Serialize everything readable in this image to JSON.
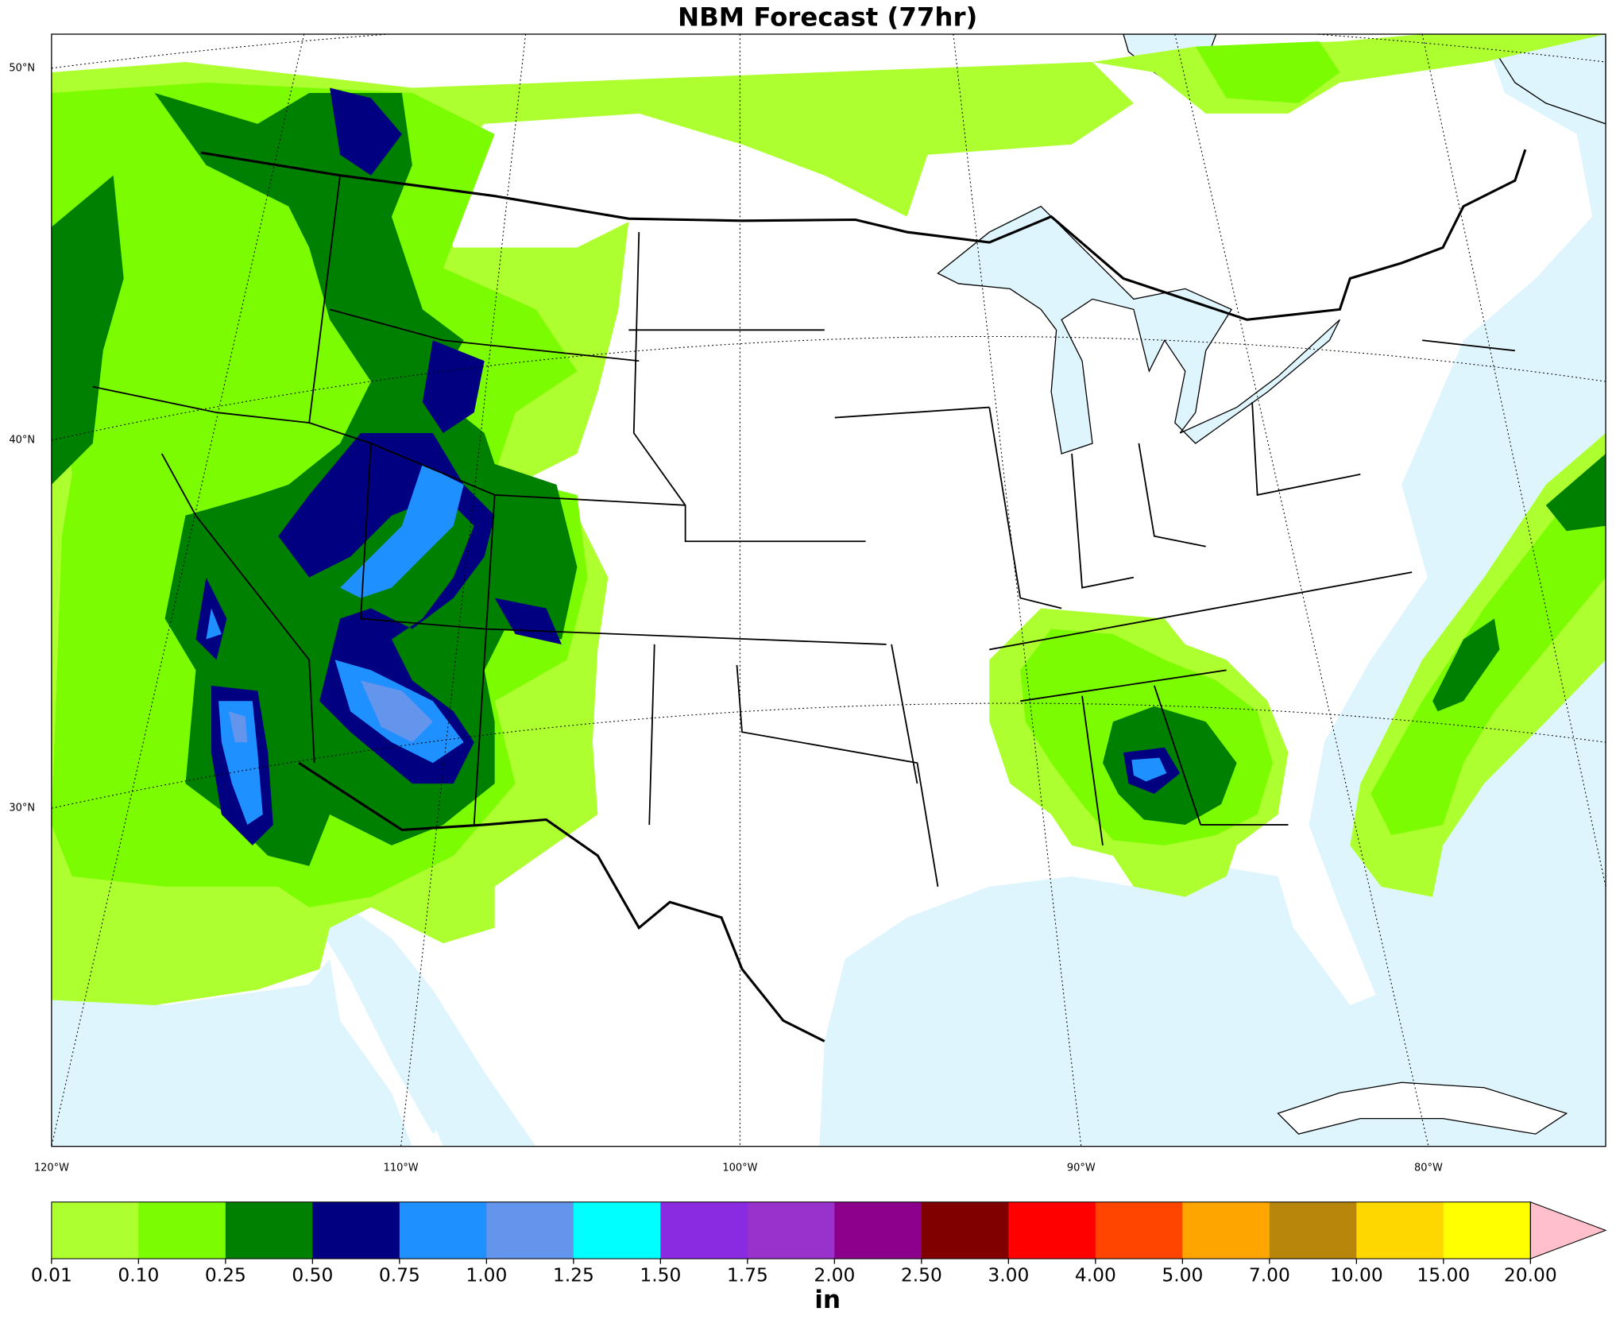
{
  "title": "NBM Forecast (77hr)",
  "map": {
    "lat_labels": [
      "50°N",
      "40°N",
      "30°N"
    ],
    "lon_labels": [
      "120°W",
      "110°W",
      "100°W",
      "90°W",
      "80°W"
    ]
  },
  "colorbar": {
    "label": "in",
    "ticks": [
      {
        "value": 0.01,
        "label": "0.01"
      },
      {
        "value": 0.1,
        "label": "0.10"
      },
      {
        "value": 0.25,
        "label": "0.25"
      },
      {
        "value": 0.5,
        "label": "0.50"
      },
      {
        "value": 0.75,
        "label": "0.75"
      },
      {
        "value": 1,
        "label": "1.00"
      },
      {
        "value": 1.25,
        "label": "1.25"
      },
      {
        "value": 1.5,
        "label": "1.50"
      },
      {
        "value": 1.75,
        "label": "1.75"
      },
      {
        "value": 2,
        "label": "2.00"
      },
      {
        "value": 2.5,
        "label": "2.50"
      },
      {
        "value": 3,
        "label": "3.00"
      },
      {
        "value": 4,
        "label": "4.00"
      },
      {
        "value": 5,
        "label": "5.00"
      },
      {
        "value": 7,
        "label": "7.00"
      },
      {
        "value": 10,
        "label": "10.00"
      },
      {
        "value": 15,
        "label": "15.00"
      },
      {
        "value": 20,
        "label": "20.00"
      }
    ],
    "colors": [
      "#adff2f",
      "#7cfc00",
      "#008000",
      "#000080",
      "#1e90ff",
      "#6495ed",
      "#00ffff",
      "#8a2be2",
      "#9932cc",
      "#8b008b",
      "#800000",
      "#ff0000",
      "#ff4500",
      "#ffa500",
      "#b8860b",
      "#ffd700",
      "#ffff00"
    ],
    "extend_color": "#ffc0cb"
  }
}
